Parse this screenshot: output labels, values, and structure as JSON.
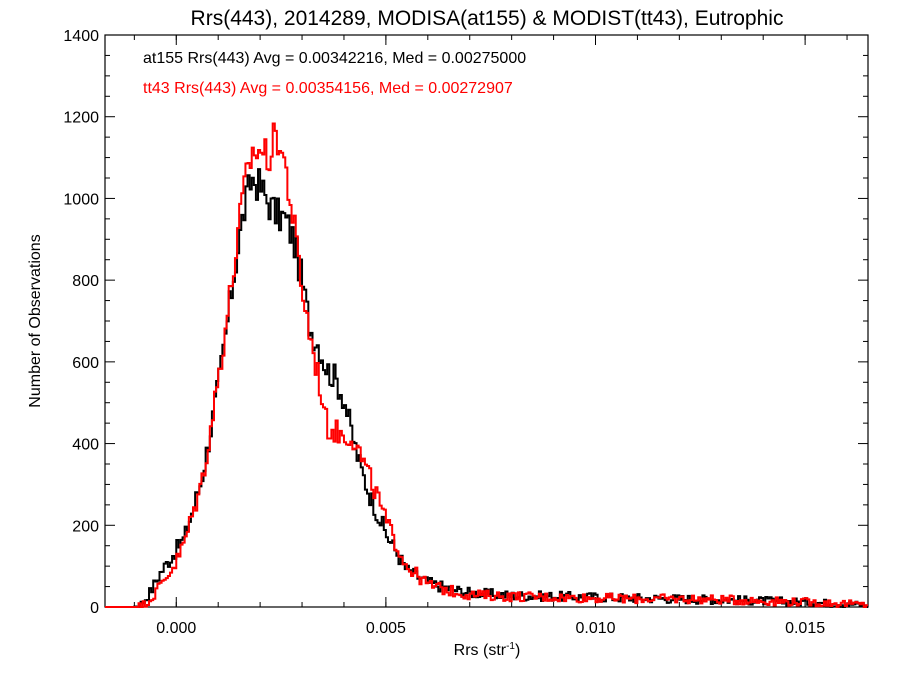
{
  "chart_data": {
    "type": "line",
    "title": "Rrs(443), 2014289, MODISA(at155) & MODIST(tt43), Eutrophic",
    "xlabel": "Rrs (str",
    "xlabel_sup": "-1",
    "xlabel_close": ")",
    "ylabel": "Number of Observations",
    "xlim": [
      -0.0017,
      0.0165
    ],
    "ylim": [
      0,
      1400
    ],
    "xticks": [
      0.0,
      0.005,
      0.01,
      0.015
    ],
    "xtick_labels": [
      "0.000",
      "0.005",
      "0.010",
      "0.015"
    ],
    "yticks": [
      0,
      200,
      400,
      600,
      800,
      1000,
      1200,
      1400
    ],
    "ytick_labels": [
      "0",
      "200",
      "400",
      "600",
      "800",
      "1000",
      "1200",
      "1400"
    ],
    "grid": false,
    "legend_position": "top-left",
    "colors": {
      "at155": "#000000",
      "tt43": "#ff0000"
    },
    "annotations": [
      {
        "text": "at155 Rrs(443) Avg = 0.00342216, Med = 0.00275000",
        "color": "#000000"
      },
      {
        "text": "tt43 Rrs(443) Avg = 0.00354156, Med = 0.00272907",
        "color": "#ff0000"
      }
    ],
    "series": [
      {
        "name": "at155",
        "color": "#000000",
        "x": [
          -0.0017,
          -0.001,
          -0.0008,
          -0.0006,
          -0.0004,
          -0.0002,
          0.0,
          0.0002,
          0.0004,
          0.0006,
          0.0008,
          0.001,
          0.0012,
          0.0014,
          0.0016,
          0.0018,
          0.002,
          0.0022,
          0.0024,
          0.0026,
          0.0028,
          0.003,
          0.0032,
          0.0034,
          0.0036,
          0.0038,
          0.004,
          0.0042,
          0.0044,
          0.0046,
          0.0048,
          0.005,
          0.0055,
          0.006,
          0.0065,
          0.007,
          0.008,
          0.009,
          0.01,
          0.011,
          0.012,
          0.013,
          0.014,
          0.015,
          0.016,
          0.0165
        ],
        "y": [
          0,
          0,
          10,
          40,
          80,
          110,
          140,
          170,
          240,
          310,
          420,
          540,
          680,
          830,
          960,
          1050,
          1030,
          990,
          960,
          950,
          900,
          800,
          680,
          640,
          580,
          560,
          510,
          420,
          340,
          280,
          230,
          180,
          90,
          60,
          45,
          35,
          28,
          26,
          24,
          22,
          20,
          18,
          15,
          12,
          8,
          5
        ]
      },
      {
        "name": "tt43",
        "color": "#ff0000",
        "x": [
          -0.0017,
          -0.001,
          -0.0008,
          -0.0006,
          -0.0004,
          -0.0002,
          0.0,
          0.0002,
          0.0004,
          0.0006,
          0.0008,
          0.001,
          0.0012,
          0.0014,
          0.0016,
          0.0018,
          0.002,
          0.0022,
          0.0024,
          0.0026,
          0.0028,
          0.003,
          0.0032,
          0.0034,
          0.0036,
          0.0038,
          0.004,
          0.0042,
          0.0044,
          0.0046,
          0.0048,
          0.005,
          0.0055,
          0.006,
          0.0065,
          0.007,
          0.008,
          0.009,
          0.01,
          0.011,
          0.012,
          0.013,
          0.014,
          0.015,
          0.016,
          0.0165
        ],
        "y": [
          0,
          0,
          5,
          20,
          50,
          80,
          110,
          160,
          230,
          300,
          420,
          560,
          700,
          850,
          1010,
          1110,
          1120,
          1100,
          1160,
          1080,
          940,
          780,
          660,
          560,
          440,
          430,
          420,
          420,
          370,
          320,
          270,
          210,
          100,
          55,
          40,
          30,
          26,
          24,
          22,
          20,
          20,
          18,
          15,
          12,
          8,
          5
        ]
      }
    ]
  }
}
